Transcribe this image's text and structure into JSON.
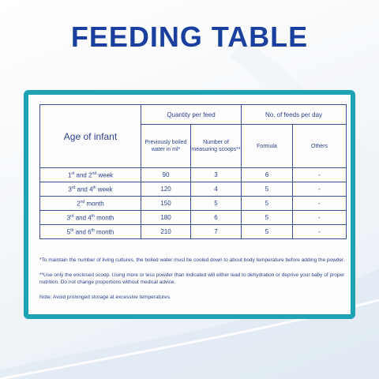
{
  "title": "FEEDING TABLE",
  "colors": {
    "title": "#1b3f9e",
    "frame": "#1fa3b4",
    "text": "#2a3f88"
  },
  "table": {
    "age_header": "Age of infant",
    "group1": "Quantity per feed",
    "group2": "No. of feeds per day",
    "sub_water": "Previously boiled water in ml*",
    "sub_scoops": "Number of measuring scoops**",
    "sub_formula": "Formula",
    "sub_others": "Others",
    "rows": [
      {
        "age_a": "1",
        "sup_a": "st",
        "mid": " and 2",
        "sup_b": "nd",
        "tail": " week",
        "water": "90",
        "scoops": "3",
        "formula": "6",
        "others": "-"
      },
      {
        "age_a": "3",
        "sup_a": "rd",
        "mid": " and 4",
        "sup_b": "th",
        "tail": " week",
        "water": "120",
        "scoops": "4",
        "formula": "5",
        "others": "-"
      },
      {
        "age_a": "2",
        "sup_a": "nd",
        "mid": "",
        "sup_b": "",
        "tail": " month",
        "water": "150",
        "scoops": "5",
        "formula": "5",
        "others": "-"
      },
      {
        "age_a": "3",
        "sup_a": "rd",
        "mid": " and 4",
        "sup_b": "th",
        "tail": " month",
        "water": "180",
        "scoops": "6",
        "formula": "5",
        "others": "-"
      },
      {
        "age_a": "5",
        "sup_a": "th",
        "mid": " and 6",
        "sup_b": "th",
        "tail": " month",
        "water": "210",
        "scoops": "7",
        "formula": "5",
        "others": "-"
      }
    ]
  },
  "notes": {
    "n1": "*To maintain the number of living cultures, the boiled water must be cooled down to about body temperature before adding the powder.",
    "n2": "**Use only the enclosed scoop. Using more or less powder than indicated will either lead to dehydration or deprive your baby of proper nutrition. Do not change proportions without medical advice.",
    "n3": "Note: Avoid prolonged storage at excessive temperatures."
  }
}
